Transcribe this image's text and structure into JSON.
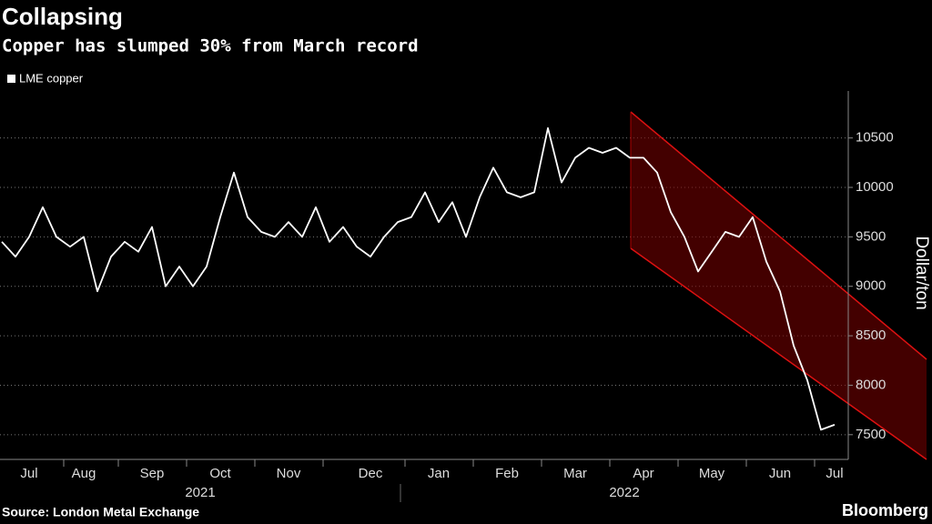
{
  "chart_data": {
    "type": "line",
    "title": "Collapsing",
    "subtitle": "Copper has slumped 30% from March record",
    "source": "Source: London Metal Exchange",
    "brand": "Bloomberg",
    "y_label": "Dollar/ton",
    "years": [
      "2021",
      "2022"
    ],
    "categories": [
      null,
      null,
      "Jul",
      null,
      null,
      null,
      "Aug",
      null,
      null,
      null,
      null,
      "Sep",
      null,
      null,
      null,
      null,
      "Oct",
      null,
      null,
      null,
      null,
      "Nov",
      null,
      null,
      null,
      null,
      null,
      "Dec",
      null,
      null,
      null,
      null,
      "Jan",
      null,
      null,
      null,
      null,
      "Feb",
      null,
      null,
      null,
      null,
      "Mar",
      null,
      null,
      null,
      null,
      "Apr",
      null,
      null,
      null,
      null,
      "May",
      null,
      null,
      null,
      null,
      "Jun",
      null,
      null,
      null,
      "Jul"
    ],
    "series": [
      {
        "name": "LME copper",
        "color": "#ffffff",
        "values": [
          9450,
          9300,
          9500,
          9800,
          9500,
          9400,
          9500,
          8950,
          9300,
          9450,
          9350,
          9600,
          9000,
          9200,
          9000,
          9200,
          9700,
          10150,
          9700,
          9550,
          9500,
          9650,
          9500,
          9800,
          9450,
          9600,
          9400,
          9300,
          9500,
          9650,
          9700,
          9950,
          9650,
          9850,
          9500,
          9900,
          10200,
          9950,
          9900,
          9950,
          10600,
          10050,
          10300,
          10400,
          10350,
          10400,
          10300,
          10300,
          10150,
          9750,
          9500,
          9150,
          9350,
          9550,
          9500,
          9700,
          9250,
          8950,
          8400,
          8050,
          7550,
          7600
        ]
      }
    ],
    "ylim": [
      7250,
      10975
    ],
    "yticks": [
      7500,
      8000,
      8500,
      9000,
      9500,
      10000,
      10500
    ],
    "grid": true
  }
}
